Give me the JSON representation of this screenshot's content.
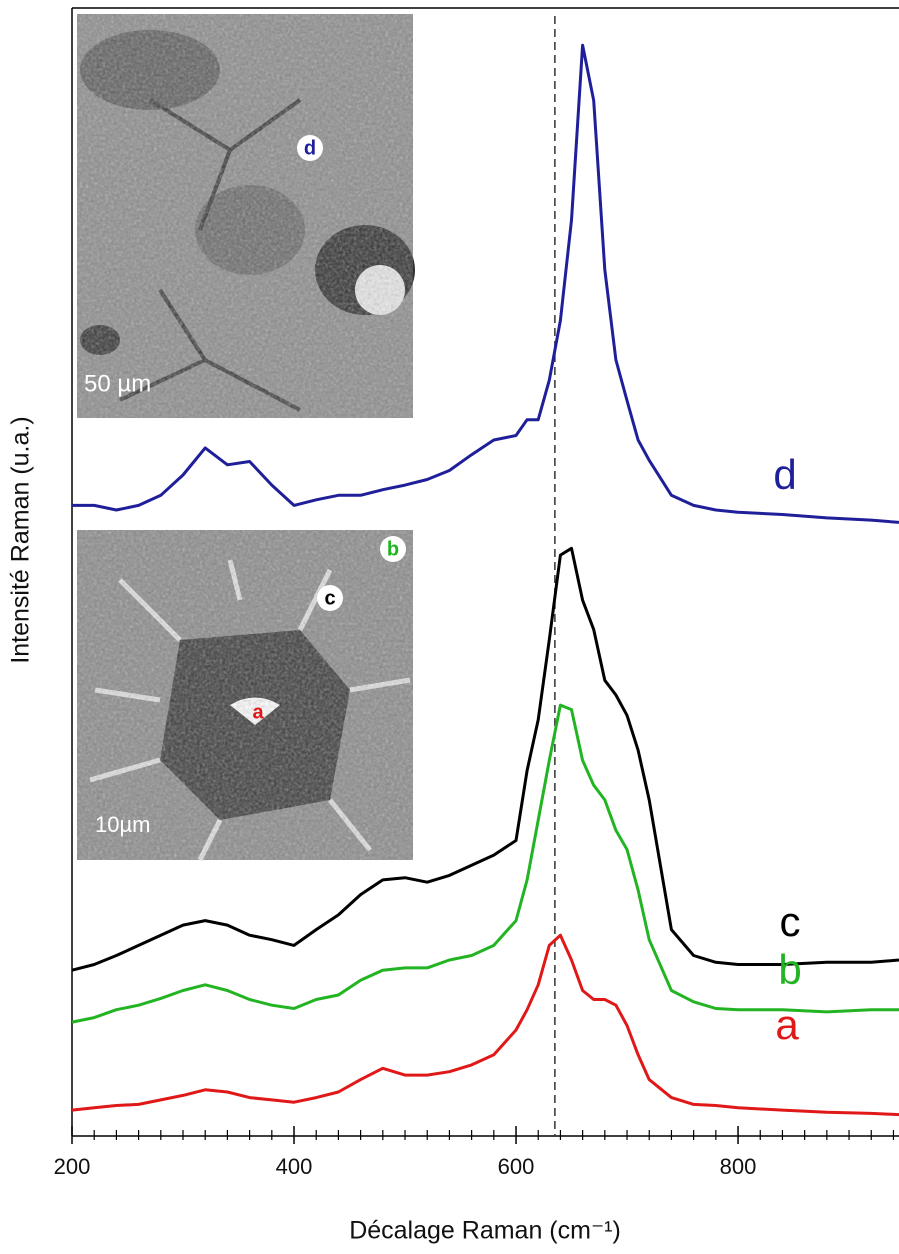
{
  "chart_data": {
    "type": "line",
    "xlabel": "Décalage Raman (cm⁻¹)",
    "ylabel": "Intensité Raman (u.a.)",
    "xlim": [
      200,
      945
    ],
    "ylim": [
      0,
      100
    ],
    "xticks": [
      200,
      400,
      600,
      800
    ],
    "xminorticks": [
      220,
      240,
      260,
      280,
      300,
      320,
      340,
      360,
      380,
      420,
      440,
      460,
      480,
      500,
      520,
      540,
      560,
      580,
      620,
      640,
      660,
      680,
      700,
      720,
      740,
      760,
      780,
      820,
      840,
      860,
      880,
      900,
      920,
      940
    ],
    "reference_line": {
      "x": 635
    },
    "x": [
      200,
      220,
      240,
      260,
      280,
      300,
      320,
      340,
      360,
      380,
      400,
      420,
      440,
      460,
      480,
      500,
      520,
      540,
      560,
      580,
      600,
      610,
      620,
      630,
      640,
      650,
      660,
      670,
      680,
      690,
      700,
      710,
      720,
      740,
      760,
      780,
      800,
      840,
      880,
      920,
      945
    ],
    "series": [
      {
        "name": "d",
        "color": "#1f1f9a",
        "values": [
          55.9,
          55.9,
          55.5,
          55.9,
          56.8,
          58.6,
          61.0,
          59.5,
          59.8,
          57.7,
          55.9,
          56.4,
          56.8,
          56.8,
          57.3,
          57.7,
          58.2,
          59.0,
          60.4,
          61.7,
          62.1,
          63.5,
          63.5,
          67.0,
          72.3,
          81.2,
          96.7,
          91.8,
          76.8,
          68.8,
          65.2,
          61.7,
          59.9,
          56.8,
          55.9,
          55.5,
          55.3,
          55.1,
          54.8,
          54.6,
          54.4
        ]
      },
      {
        "name": "c",
        "color": "#000000",
        "values": [
          14.7,
          15.2,
          16.0,
          16.9,
          17.8,
          18.7,
          19.1,
          18.7,
          17.8,
          17.4,
          16.9,
          18.3,
          19.6,
          21.4,
          22.7,
          22.9,
          22.5,
          23.1,
          24.0,
          24.9,
          26.2,
          32.4,
          36.9,
          44.0,
          51.5,
          52.1,
          47.5,
          44.9,
          40.4,
          39.1,
          37.3,
          34.2,
          29.8,
          18.3,
          16.0,
          15.4,
          15.2,
          15.2,
          15.4,
          15.4,
          15.6
        ]
      },
      {
        "name": "b",
        "color": "#22b422",
        "values": [
          10.1,
          10.5,
          11.2,
          11.6,
          12.2,
          12.9,
          13.4,
          12.9,
          12.1,
          11.6,
          11.3,
          12.1,
          12.5,
          13.8,
          14.7,
          14.9,
          14.9,
          15.6,
          16.0,
          16.9,
          19.1,
          22.7,
          28.0,
          33.3,
          38.2,
          37.8,
          33.3,
          31.1,
          29.8,
          27.1,
          25.4,
          21.8,
          17.4,
          12.9,
          11.9,
          11.3,
          11.2,
          11.2,
          11.0,
          11.2,
          11.2
        ]
      },
      {
        "name": "a",
        "color": "#e01818",
        "values": [
          2.3,
          2.5,
          2.7,
          2.8,
          3.2,
          3.6,
          4.1,
          3.9,
          3.4,
          3.2,
          3.0,
          3.4,
          3.9,
          5.0,
          6.0,
          5.4,
          5.4,
          5.7,
          6.3,
          7.2,
          9.4,
          11.2,
          13.4,
          16.9,
          17.8,
          15.6,
          12.9,
          12.1,
          12.1,
          11.6,
          9.8,
          7.2,
          5.0,
          3.4,
          2.8,
          2.7,
          2.5,
          2.3,
          2.1,
          2.0,
          1.9
        ]
      }
    ],
    "insets": [
      {
        "scale_label": "50 µm",
        "markers": [
          "d"
        ]
      },
      {
        "scale_label": "10µm",
        "markers": [
          "b",
          "c",
          "a"
        ]
      }
    ]
  }
}
